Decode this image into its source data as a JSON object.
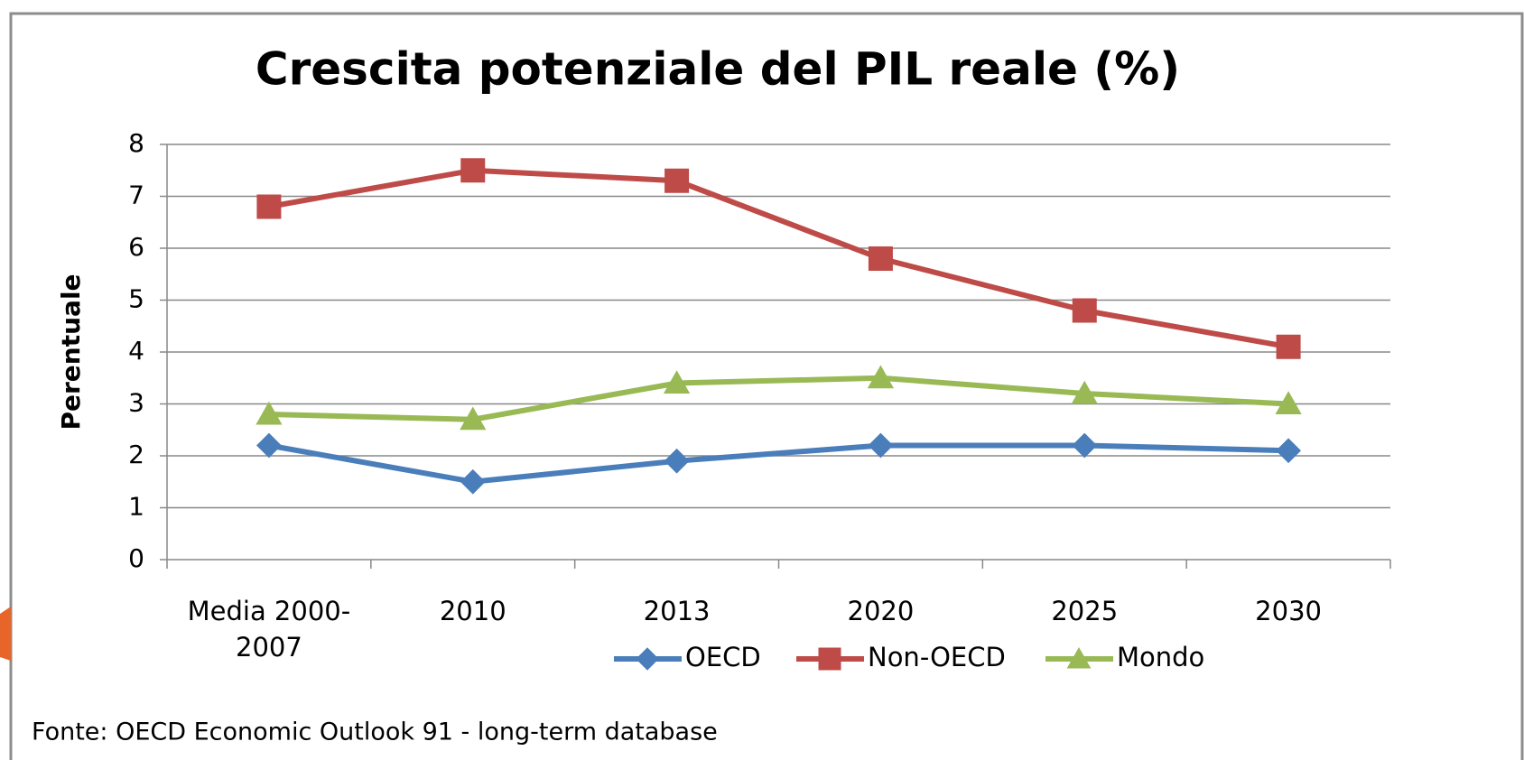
{
  "chart_data": {
    "type": "line",
    "title": "Crescita potenziale del PIL reale (%)",
    "y_label": "Perentuale",
    "source": "Fonte: OECD Economic Outlook 91 -  long-term database",
    "categories": [
      "Media 2000-2007",
      "2010",
      "2013",
      "2020",
      "2025",
      "2030"
    ],
    "series": [
      {
        "name": "OECD",
        "color": "#4a7ebb",
        "marker": "diamond",
        "values": [
          2.2,
          1.5,
          1.9,
          2.2,
          2.2,
          2.1
        ]
      },
      {
        "name": "Non-OECD",
        "color": "#be4b48",
        "marker": "square",
        "values": [
          6.8,
          7.5,
          7.3,
          5.8,
          4.8,
          4.1
        ]
      },
      {
        "name": "Mondo",
        "color": "#98b954",
        "marker": "triangle",
        "values": [
          2.8,
          2.7,
          3.4,
          3.5,
          3.2,
          3.0
        ]
      }
    ],
    "ylim": [
      0,
      8
    ],
    "yticks": [
      0,
      1,
      2,
      3,
      4,
      5,
      6,
      7,
      8
    ],
    "grid": true,
    "legend": "bottom"
  }
}
